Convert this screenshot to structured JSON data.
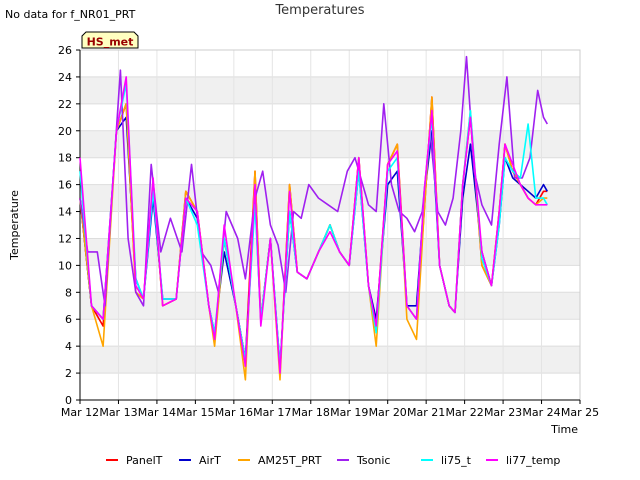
{
  "note": "No data for f_NR01_PRT",
  "chart_data": {
    "type": "line",
    "title": "Temperatures",
    "xlabel": "Time",
    "ylabel": "Temperature",
    "xlim": [
      12,
      25
    ],
    "ylim": [
      0,
      26
    ],
    "x_ticks": [
      {
        "value": 12,
        "label": "Mar 12"
      },
      {
        "value": 13,
        "label": "Mar 13"
      },
      {
        "value": 14,
        "label": "Mar 14"
      },
      {
        "value": 15,
        "label": "Mar 15"
      },
      {
        "value": 16,
        "label": "Mar 16"
      },
      {
        "value": 17,
        "label": "Mar 17"
      },
      {
        "value": 18,
        "label": "Mar 18"
      },
      {
        "value": 19,
        "label": "Mar 19"
      },
      {
        "value": 20,
        "label": "Mar 20"
      },
      {
        "value": 21,
        "label": "Mar 21"
      },
      {
        "value": 22,
        "label": "Mar 22"
      },
      {
        "value": 23,
        "label": "Mar 23"
      },
      {
        "value": 24,
        "label": "Mar 24"
      },
      {
        "value": 25,
        "label": "Mar 25"
      }
    ],
    "y_ticks": [
      0,
      2,
      4,
      6,
      8,
      10,
      12,
      14,
      16,
      18,
      20,
      22,
      24,
      26
    ],
    "annotation": "HS_met",
    "legend_position": "bottom",
    "series": [
      {
        "name": "PanelT",
        "color": "#ff0000",
        "x": [
          12.0,
          12.3,
          12.6,
          12.95,
          13.2,
          13.45,
          13.65,
          13.9,
          14.15,
          14.5,
          14.75,
          15.05,
          15.35,
          15.5,
          15.75,
          16.05,
          16.3,
          16.55,
          16.7,
          16.95,
          17.2,
          17.45,
          17.65,
          17.9,
          18.2,
          18.5,
          18.75,
          19.0,
          19.25,
          19.5,
          19.7,
          20.0,
          20.25,
          20.5,
          20.75,
          20.95,
          21.15,
          21.35,
          21.6,
          21.75,
          21.95,
          22.15,
          22.45,
          22.7,
          22.9,
          23.05,
          23.25,
          23.45,
          23.65,
          23.85,
          24.05,
          24.15
        ],
        "values": [
          15,
          7,
          5.5,
          20,
          22,
          8,
          7.5,
          16,
          7,
          7.5,
          15.5,
          14,
          7,
          4.5,
          12,
          7,
          3,
          17,
          6,
          12,
          2,
          16,
          9.5,
          9,
          11,
          13,
          11,
          10,
          18,
          8.5,
          5.5,
          17.5,
          19,
          7,
          6,
          14,
          22.5,
          10,
          7,
          6.5,
          16,
          21,
          10,
          8.5,
          14,
          19,
          17,
          16,
          15,
          14.5,
          15.5,
          15.5
        ]
      },
      {
        "name": "AirT",
        "color": "#0000cc",
        "x": [
          12.0,
          12.3,
          12.6,
          12.95,
          13.2,
          13.45,
          13.65,
          13.9,
          14.15,
          14.5,
          14.75,
          15.05,
          15.35,
          15.5,
          15.75,
          16.05,
          16.3,
          16.55,
          16.7,
          16.95,
          17.2,
          17.45,
          17.65,
          17.9,
          18.2,
          18.5,
          18.75,
          19.0,
          19.25,
          19.5,
          19.7,
          20.0,
          20.25,
          20.5,
          20.75,
          20.95,
          21.15,
          21.35,
          21.6,
          21.75,
          21.95,
          22.15,
          22.45,
          22.7,
          22.9,
          23.05,
          23.25,
          23.45,
          23.65,
          23.85,
          24.05,
          24.15
        ],
        "values": [
          15,
          7,
          6,
          20,
          21,
          9,
          7.5,
          15,
          7.5,
          7.5,
          15,
          13.5,
          7,
          5,
          11,
          7,
          3,
          15,
          6,
          12,
          2.5,
          14,
          9.5,
          9,
          11,
          13,
          11,
          10,
          17,
          8.5,
          6,
          16,
          17,
          7,
          7,
          15,
          20,
          10,
          7,
          6.5,
          15,
          19,
          11,
          8.5,
          13,
          18,
          16.5,
          16,
          15.5,
          15,
          16,
          15.5
        ]
      },
      {
        "name": "AM25T_PRT",
        "color": "#ffa500",
        "x": [
          12.0,
          12.3,
          12.6,
          12.95,
          13.2,
          13.45,
          13.65,
          13.9,
          14.15,
          14.5,
          14.75,
          15.05,
          15.35,
          15.5,
          15.75,
          16.05,
          16.3,
          16.55,
          16.7,
          16.95,
          17.2,
          17.45,
          17.65,
          17.9,
          18.2,
          18.5,
          18.75,
          19.0,
          19.25,
          19.5,
          19.7,
          20.0,
          20.25,
          20.5,
          20.75,
          20.95,
          21.15,
          21.35,
          21.6,
          21.75,
          21.95,
          22.15,
          22.45,
          22.7,
          22.9,
          23.05,
          23.25,
          23.45,
          23.65,
          23.85,
          24.05,
          24.15
        ],
        "values": [
          15,
          7,
          4,
          20,
          22,
          8,
          7.5,
          16,
          7,
          7.5,
          15.5,
          14,
          7,
          4,
          12,
          7,
          1.5,
          17,
          6,
          12,
          1.5,
          16,
          9.5,
          9,
          11,
          13,
          11,
          10,
          18,
          8.5,
          4,
          17.5,
          19,
          6,
          4.5,
          14,
          22.5,
          10,
          7,
          6.5,
          16,
          21.5,
          10,
          8.5,
          14,
          19,
          17,
          16,
          15,
          14.5,
          15,
          15
        ]
      },
      {
        "name": "Tsonic",
        "color": "#a020f0",
        "x": [
          12.0,
          12.2,
          12.45,
          12.65,
          12.85,
          13.05,
          13.25,
          13.45,
          13.65,
          13.85,
          14.1,
          14.35,
          14.65,
          14.9,
          15.15,
          15.4,
          15.6,
          15.8,
          16.1,
          16.3,
          16.55,
          16.75,
          16.95,
          17.15,
          17.35,
          17.55,
          17.75,
          17.95,
          18.2,
          18.45,
          18.7,
          18.95,
          19.15,
          19.35,
          19.5,
          19.7,
          19.9,
          20.1,
          20.3,
          20.5,
          20.7,
          20.9,
          21.1,
          21.3,
          21.5,
          21.7,
          21.9,
          22.05,
          22.25,
          22.45,
          22.7,
          22.9,
          23.1,
          23.3,
          23.5,
          23.7,
          23.9,
          24.05,
          24.15
        ],
        "values": [
          15,
          11,
          11,
          7,
          16,
          24.5,
          12,
          8,
          7,
          17.5,
          11,
          13.5,
          11,
          17.5,
          11,
          10,
          8,
          14,
          12,
          9,
          15,
          17,
          13,
          11.5,
          8,
          14,
          13.5,
          16,
          15,
          14.5,
          14,
          17,
          18,
          16,
          14.5,
          14,
          22,
          16,
          14,
          13.5,
          12.5,
          14,
          20,
          14,
          13,
          15,
          20,
          25.5,
          17,
          14.5,
          13,
          19,
          24,
          16.5,
          16.5,
          18,
          23,
          21,
          20.5
        ]
      },
      {
        "name": "li75_t",
        "color": "#00ffff",
        "x": [
          12.0,
          12.3,
          12.6,
          12.95,
          13.2,
          13.45,
          13.65,
          13.9,
          14.15,
          14.5,
          14.75,
          15.05,
          15.35,
          15.5,
          15.75,
          16.05,
          16.3,
          16.55,
          16.7,
          16.95,
          17.2,
          17.45,
          17.65,
          17.9,
          18.2,
          18.5,
          18.75,
          19.0,
          19.25,
          19.5,
          19.7,
          20.0,
          20.25,
          20.5,
          20.75,
          20.95,
          21.15,
          21.35,
          21.6,
          21.75,
          21.95,
          22.15,
          22.45,
          22.7,
          22.9,
          23.05,
          23.25,
          23.45,
          23.65,
          23.85,
          24.05,
          24.15
        ],
        "values": [
          17,
          7,
          6,
          20,
          23.5,
          9,
          7.5,
          15.5,
          7.5,
          7.5,
          15,
          13,
          7,
          5,
          12,
          7,
          3,
          14.5,
          6,
          12,
          2.5,
          14,
          9.5,
          9,
          11,
          13,
          11,
          10,
          17,
          8.5,
          5,
          17,
          18,
          7,
          6,
          15.5,
          21,
          10,
          7,
          6.5,
          16,
          21.5,
          10.5,
          8.5,
          13,
          18,
          17,
          16.5,
          20.5,
          15,
          15,
          14.5
        ]
      },
      {
        "name": "li77_temp",
        "color": "#ff00ff",
        "x": [
          12.0,
          12.3,
          12.6,
          12.95,
          13.2,
          13.45,
          13.65,
          13.9,
          14.15,
          14.5,
          14.75,
          15.05,
          15.35,
          15.5,
          15.75,
          16.05,
          16.3,
          16.55,
          16.7,
          16.95,
          17.2,
          17.45,
          17.65,
          17.9,
          18.2,
          18.5,
          18.75,
          19.0,
          19.25,
          19.5,
          19.7,
          20.0,
          20.25,
          20.5,
          20.75,
          20.95,
          21.15,
          21.35,
          21.6,
          21.75,
          21.95,
          22.15,
          22.45,
          22.7,
          22.9,
          23.05,
          23.25,
          23.45,
          23.65,
          23.85,
          24.05,
          24.15
        ],
        "values": [
          18,
          7,
          6,
          20,
          24,
          8.5,
          7.5,
          16.5,
          7,
          7.5,
          15,
          14,
          7,
          4.5,
          13,
          7,
          2.5,
          16,
          5.5,
          12,
          2,
          15.5,
          9.5,
          9,
          11,
          12.5,
          11,
          10,
          18,
          8.5,
          5.5,
          17.5,
          18.5,
          7,
          6,
          15.5,
          21.5,
          10,
          7,
          6.5,
          16,
          21,
          11,
          8.5,
          14,
          19,
          17.5,
          16,
          15,
          14.5,
          14.5,
          14.5
        ]
      }
    ]
  }
}
